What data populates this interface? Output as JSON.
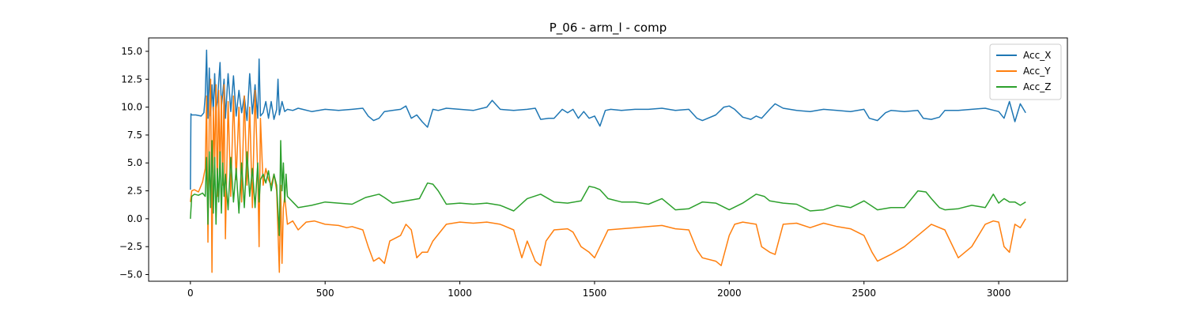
{
  "chart_data": {
    "type": "line",
    "title": "P_06 - arm_l - comp",
    "xlabel": "",
    "ylabel": "",
    "xlim": [
      -155,
      3255
    ],
    "ylim": [
      -5.6,
      16.2
    ],
    "xticks": [
      0,
      500,
      1000,
      1500,
      2000,
      2500,
      3000
    ],
    "yticks": [
      -5.0,
      -2.5,
      0.0,
      2.5,
      5.0,
      7.5,
      10.0,
      12.5,
      15.0
    ],
    "ytick_labels": [
      "−5.0",
      "−2.5",
      "0.0",
      "2.5",
      "5.0",
      "7.5",
      "10.0",
      "12.5",
      "15.0"
    ],
    "grid": false,
    "legend_position": "top-right",
    "series": [
      {
        "name": "Acc_X",
        "color": "#1f77b4",
        "x": [
          0,
          2,
          5,
          20,
          40,
          50,
          55,
          60,
          65,
          70,
          75,
          80,
          85,
          90,
          95,
          100,
          110,
          115,
          125,
          130,
          140,
          150,
          160,
          170,
          180,
          190,
          200,
          210,
          220,
          230,
          240,
          250,
          255,
          260,
          270,
          280,
          290,
          300,
          310,
          320,
          325,
          330,
          340,
          350,
          360,
          380,
          400,
          450,
          500,
          550,
          600,
          640,
          660,
          680,
          700,
          720,
          750,
          780,
          800,
          820,
          840,
          860,
          880,
          900,
          920,
          950,
          1000,
          1050,
          1100,
          1120,
          1150,
          1200,
          1250,
          1280,
          1300,
          1330,
          1350,
          1380,
          1400,
          1420,
          1440,
          1460,
          1480,
          1500,
          1520,
          1540,
          1560,
          1600,
          1650,
          1700,
          1750,
          1800,
          1850,
          1880,
          1900,
          1950,
          1980,
          2000,
          2020,
          2050,
          2080,
          2100,
          2120,
          2150,
          2170,
          2200,
          2250,
          2300,
          2350,
          2400,
          2450,
          2500,
          2520,
          2550,
          2580,
          2600,
          2650,
          2700,
          2720,
          2750,
          2780,
          2800,
          2850,
          2900,
          2950,
          3000,
          3020,
          3040,
          3060,
          3080,
          3100
        ],
        "y": [
          2.6,
          9.4,
          9.3,
          9.3,
          9.2,
          9.5,
          11.0,
          15.1,
          9.0,
          13.5,
          9.2,
          12.0,
          9.5,
          13.0,
          9.8,
          10.5,
          14.0,
          10.0,
          12.5,
          9.0,
          13.0,
          9.6,
          12.8,
          9.2,
          11.5,
          9.5,
          11.0,
          8.8,
          13.0,
          9.4,
          12.0,
          9.0,
          14.3,
          9.2,
          9.5,
          10.5,
          9.0,
          10.5,
          8.9,
          9.8,
          12.5,
          9.3,
          10.5,
          9.6,
          9.8,
          9.7,
          9.9,
          9.6,
          9.8,
          9.7,
          9.8,
          9.9,
          9.2,
          8.8,
          9.0,
          9.6,
          9.7,
          9.8,
          10.1,
          9.0,
          9.3,
          8.7,
          8.2,
          9.8,
          9.7,
          9.9,
          9.8,
          9.7,
          10.0,
          10.6,
          9.8,
          9.7,
          9.8,
          9.9,
          8.9,
          9.0,
          9.0,
          9.8,
          9.5,
          9.8,
          9.0,
          9.6,
          9.0,
          9.2,
          8.3,
          9.7,
          9.8,
          9.7,
          9.8,
          9.8,
          9.9,
          9.7,
          9.8,
          9.0,
          8.8,
          9.3,
          10.0,
          10.1,
          9.8,
          9.1,
          8.9,
          9.2,
          9.0,
          9.8,
          10.3,
          9.9,
          9.7,
          9.6,
          9.8,
          9.7,
          9.6,
          9.8,
          9.0,
          8.8,
          9.5,
          9.7,
          9.6,
          9.7,
          9.0,
          8.9,
          9.1,
          9.7,
          9.7,
          9.8,
          9.9,
          9.6,
          9.0,
          10.5,
          8.7,
          10.3,
          9.5
        ]
      },
      {
        "name": "Acc_Y",
        "color": "#ff7f0e",
        "x": [
          0,
          5,
          15,
          30,
          45,
          55,
          60,
          65,
          70,
          75,
          80,
          85,
          90,
          95,
          100,
          105,
          110,
          115,
          120,
          125,
          130,
          140,
          150,
          160,
          170,
          180,
          190,
          200,
          210,
          220,
          230,
          240,
          250,
          255,
          260,
          270,
          280,
          290,
          300,
          310,
          320,
          330,
          335,
          340,
          345,
          350,
          360,
          380,
          400,
          430,
          460,
          500,
          550,
          580,
          600,
          640,
          660,
          680,
          700,
          720,
          740,
          780,
          800,
          820,
          840,
          860,
          880,
          900,
          950,
          1000,
          1050,
          1100,
          1150,
          1200,
          1230,
          1250,
          1280,
          1300,
          1320,
          1350,
          1400,
          1420,
          1450,
          1480,
          1500,
          1520,
          1550,
          1600,
          1650,
          1700,
          1750,
          1800,
          1850,
          1880,
          1900,
          1950,
          1970,
          2000,
          2020,
          2050,
          2100,
          2120,
          2150,
          2170,
          2200,
          2250,
          2300,
          2350,
          2400,
          2450,
          2500,
          2530,
          2550,
          2600,
          2650,
          2700,
          2750,
          2800,
          2850,
          2900,
          2950,
          2980,
          3000,
          3020,
          3040,
          3060,
          3080,
          3100
        ],
        "y": [
          1.5,
          2.5,
          2.6,
          2.4,
          3.3,
          4.5,
          11.0,
          -2.1,
          9.0,
          12.5,
          -4.8,
          10.0,
          5.0,
          12.0,
          2.0,
          11.5,
          4.0,
          11.0,
          3.0,
          12.0,
          -1.8,
          10.5,
          2.0,
          11.0,
          3.5,
          10.0,
          1.5,
          11.0,
          3.0,
          10.0,
          1.0,
          11.5,
          4.0,
          -2.5,
          9.0,
          3.0,
          4.5,
          3.5,
          3.0,
          4.0,
          2.5,
          -4.8,
          3.0,
          -4.0,
          1.0,
          2.0,
          -0.5,
          -0.2,
          -1.0,
          -0.3,
          -0.2,
          -0.5,
          -0.6,
          -0.8,
          -0.7,
          -1.0,
          -2.5,
          -3.8,
          -3.5,
          -4.0,
          -2.0,
          -1.5,
          -0.5,
          -1.0,
          -3.5,
          -3.0,
          -3.0,
          -2.0,
          -0.5,
          -0.3,
          -0.4,
          -0.3,
          -0.5,
          -1.0,
          -3.5,
          -2.0,
          -3.8,
          -4.2,
          -2.0,
          -1.0,
          -0.9,
          -1.2,
          -2.5,
          -3.0,
          -3.5,
          -2.5,
          -1.0,
          -0.9,
          -0.8,
          -0.7,
          -0.6,
          -0.9,
          -1.0,
          -2.8,
          -3.5,
          -3.8,
          -4.2,
          -1.5,
          -0.5,
          -0.3,
          -0.5,
          -2.5,
          -3.0,
          -3.2,
          -0.5,
          -0.4,
          -0.8,
          -0.4,
          -0.7,
          -0.9,
          -1.5,
          -3.0,
          -3.8,
          -3.2,
          -2.5,
          -1.5,
          -0.5,
          -1.0,
          -3.5,
          -2.5,
          -0.5,
          -0.2,
          -0.3,
          -2.5,
          -3.0,
          -0.5,
          -0.8,
          0.0
        ]
      },
      {
        "name": "Acc_Z",
        "color": "#2ca02c",
        "x": [
          0,
          5,
          15,
          30,
          45,
          55,
          60,
          65,
          70,
          75,
          80,
          85,
          90,
          95,
          100,
          105,
          110,
          115,
          120,
          125,
          130,
          140,
          150,
          160,
          170,
          180,
          190,
          200,
          210,
          220,
          230,
          240,
          250,
          255,
          260,
          270,
          280,
          290,
          300,
          310,
          320,
          330,
          335,
          340,
          345,
          350,
          355,
          360,
          380,
          400,
          450,
          500,
          550,
          600,
          650,
          700,
          720,
          750,
          800,
          850,
          880,
          900,
          920,
          950,
          1000,
          1050,
          1100,
          1150,
          1200,
          1250,
          1300,
          1350,
          1400,
          1450,
          1480,
          1500,
          1520,
          1550,
          1600,
          1650,
          1700,
          1750,
          1800,
          1850,
          1900,
          1950,
          2000,
          2050,
          2100,
          2130,
          2150,
          2200,
          2250,
          2300,
          2350,
          2400,
          2450,
          2500,
          2550,
          2600,
          2650,
          2700,
          2730,
          2750,
          2780,
          2800,
          2850,
          2900,
          2950,
          2980,
          3000,
          3020,
          3040,
          3060,
          3080,
          3100
        ],
        "y": [
          0.0,
          2.0,
          2.2,
          2.1,
          2.3,
          2.0,
          5.5,
          -0.5,
          6.0,
          1.0,
          7.0,
          0.5,
          5.5,
          -0.5,
          4.5,
          1.5,
          6.0,
          0.5,
          5.0,
          2.0,
          4.0,
          0.8,
          5.5,
          1.5,
          4.5,
          0.5,
          5.0,
          1.0,
          6.0,
          2.0,
          4.5,
          1.0,
          5.0,
          1.5,
          3.5,
          4.0,
          3.2,
          4.3,
          2.5,
          4.0,
          3.0,
          -1.5,
          7.0,
          2.5,
          5.0,
          1.5,
          4.0,
          2.0,
          1.5,
          1.0,
          1.2,
          1.5,
          1.4,
          1.3,
          1.9,
          2.2,
          1.9,
          1.4,
          1.6,
          1.8,
          3.2,
          3.1,
          2.5,
          1.3,
          1.4,
          1.3,
          1.4,
          1.2,
          0.7,
          1.8,
          2.2,
          1.5,
          1.4,
          1.6,
          2.9,
          2.8,
          2.6,
          1.8,
          1.5,
          1.5,
          1.3,
          1.8,
          0.8,
          0.9,
          1.5,
          1.4,
          0.8,
          1.4,
          2.2,
          2.0,
          1.6,
          1.4,
          1.3,
          0.7,
          0.8,
          1.2,
          1.0,
          1.6,
          0.8,
          1.0,
          1.0,
          2.5,
          2.4,
          1.8,
          1.0,
          0.8,
          0.9,
          1.2,
          1.0,
          2.2,
          1.4,
          1.8,
          1.5,
          1.5,
          1.2,
          1.5
        ]
      }
    ]
  }
}
